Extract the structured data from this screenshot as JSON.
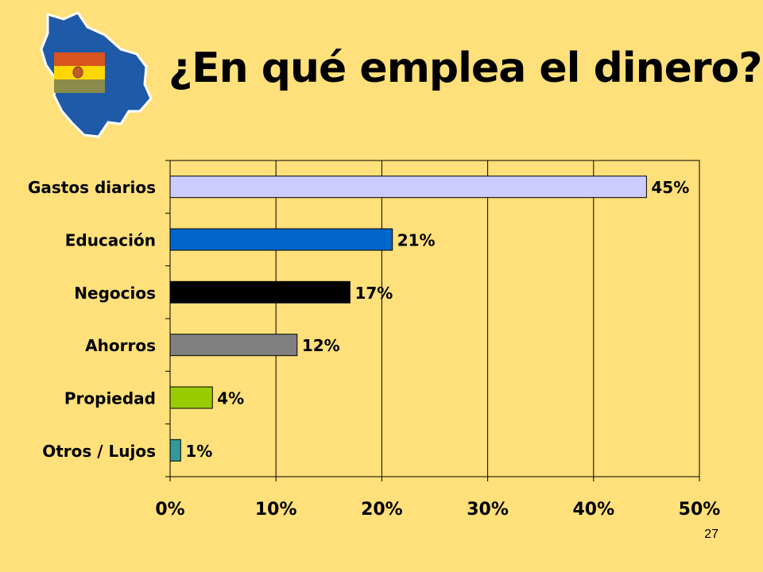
{
  "slide": {
    "title": "¿En qué emplea el dinero?",
    "page_number": "27"
  },
  "logo": {
    "icon": "bolivia-map-flag-icon",
    "map_color": "#1E5AA8",
    "flag_colors": [
      "#D9531E",
      "#FFD700",
      "#8B8B4A"
    ]
  },
  "chart_data": {
    "type": "bar",
    "orientation": "horizontal",
    "categories": [
      "Gastos diarios",
      "Educación",
      "Negocios",
      "Ahorros",
      "Propiedad",
      "Otros / Lujos"
    ],
    "values": [
      45,
      21,
      17,
      12,
      4,
      1
    ],
    "value_labels": [
      "45%",
      "21%",
      "17%",
      "12%",
      "4%",
      "1%"
    ],
    "bar_colors": [
      "#CCCCFF",
      "#0066CC",
      "#000000",
      "#808080",
      "#99CC00",
      "#339999"
    ],
    "xlim": [
      0,
      50
    ],
    "x_ticks": [
      0,
      10,
      20,
      30,
      40,
      50
    ],
    "x_tick_labels": [
      "0%",
      "10%",
      "20%",
      "30%",
      "40%",
      "50%"
    ],
    "grid": true,
    "legend": false
  }
}
